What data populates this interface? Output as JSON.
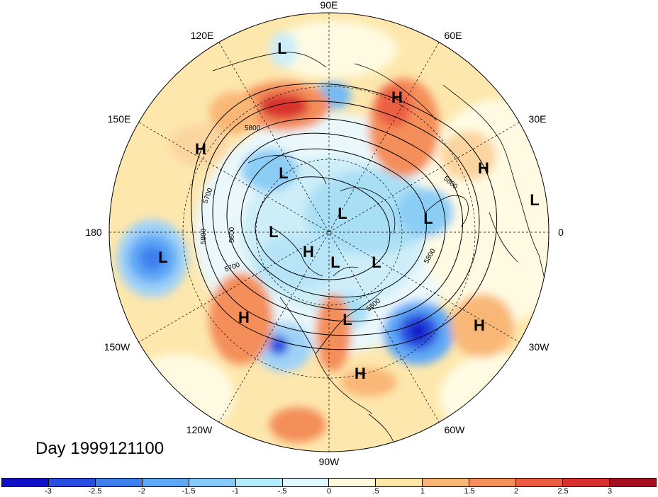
{
  "title": "Day 1999121100",
  "map": {
    "longitude_labels": [
      "90E",
      "60E",
      "30E",
      "0",
      "30W",
      "60W",
      "90W",
      "120W",
      "150W",
      "180",
      "150E",
      "120E"
    ],
    "pressure_centers": [
      {
        "label": "L"
      },
      {
        "label": "H"
      },
      {
        "label": "H"
      },
      {
        "label": "L"
      },
      {
        "label": "H"
      },
      {
        "label": "L"
      },
      {
        "label": "L"
      },
      {
        "label": "L"
      },
      {
        "label": "L"
      },
      {
        "label": "H"
      },
      {
        "label": "L"
      },
      {
        "label": "L"
      },
      {
        "label": "L"
      },
      {
        "label": "L"
      },
      {
        "label": "H"
      },
      {
        "label": "H"
      },
      {
        "label": "H"
      }
    ],
    "contour_labels": [
      "5800",
      "5700",
      "5800",
      "5600",
      "5700",
      "5800",
      "5800",
      "5600"
    ]
  },
  "colorbar": {
    "colors": [
      "#1010c8",
      "#2a4fe0",
      "#3f7fee",
      "#5fa8f6",
      "#86c9fb",
      "#b2ecfd",
      "#e0f8ff",
      "#fffbdc",
      "#fde6a6",
      "#f9b777",
      "#f48e5a",
      "#ec5e42",
      "#d8302f",
      "#a50e20"
    ],
    "ticks": [
      "-3",
      "-2.5",
      "-2",
      "-1.5",
      "-1",
      "-.5",
      "0",
      ".5",
      "1",
      "1.5",
      "2",
      "2.5",
      "3"
    ]
  }
}
